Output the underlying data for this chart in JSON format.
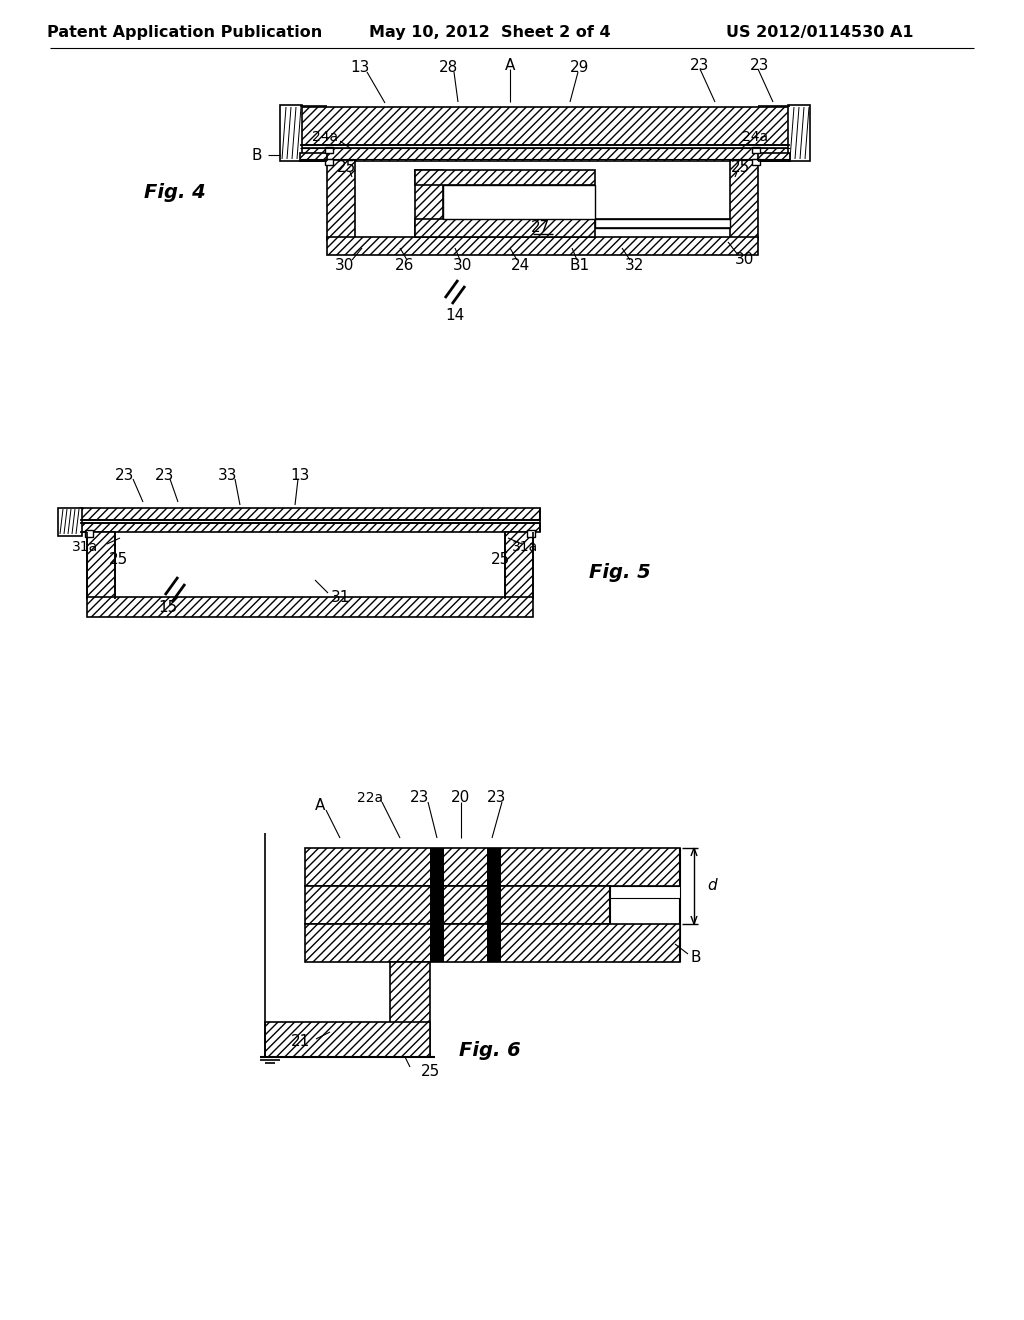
{
  "bg": "#ffffff",
  "header_left": "Patent Application Publication",
  "header_mid": "May 10, 2012  Sheet 2 of 4",
  "header_right": "US 2012/0114530 A1"
}
